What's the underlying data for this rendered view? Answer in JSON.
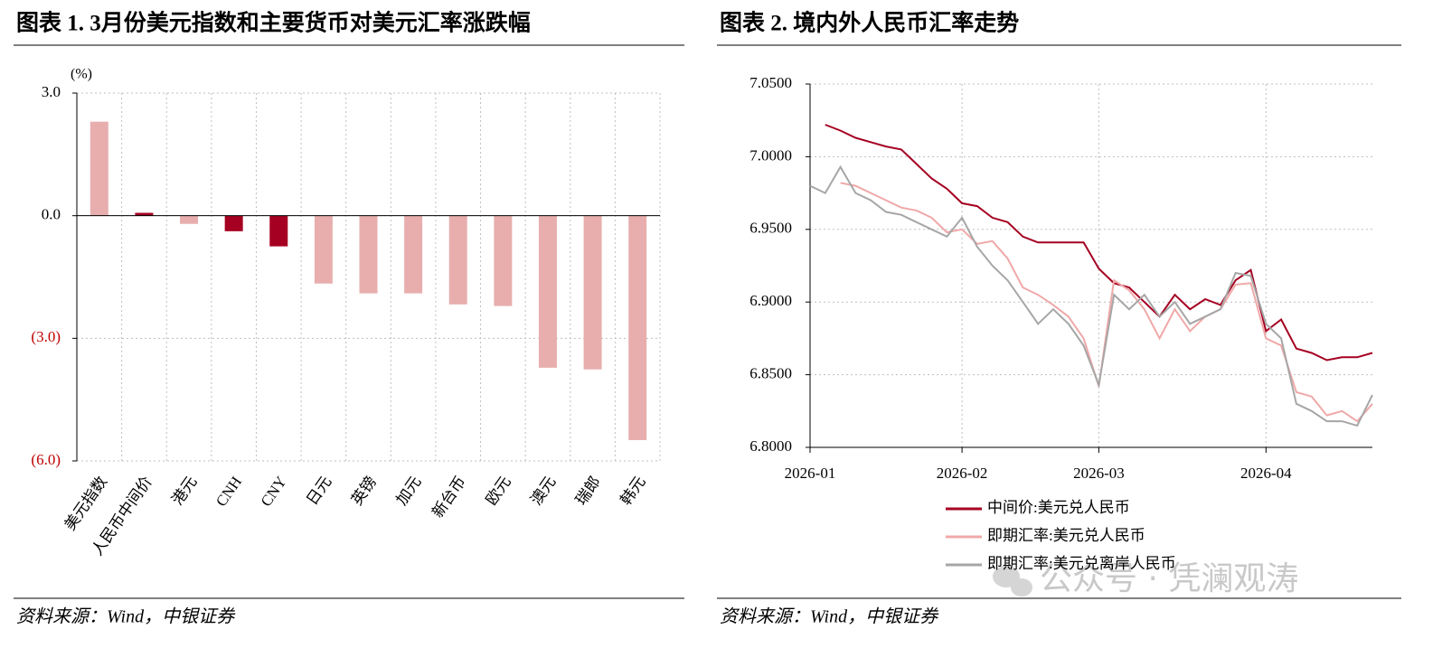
{
  "chart_data": [
    {
      "type": "bar",
      "title": "图表 1. 3月份美元指数和主要货币对美元汇率涨跌幅",
      "y_unit": "(%)",
      "source": "资料来源：Wind，中银证券",
      "categories": [
        "美元指数",
        "人民币中间价",
        "港元",
        "CNH",
        "CNY",
        "日元",
        "英镑",
        "加元",
        "新台币",
        "欧元",
        "澳元",
        "瑞郎",
        "韩元"
      ],
      "values": [
        2.3,
        0.07,
        -0.2,
        -0.38,
        -0.75,
        -1.66,
        -1.9,
        -1.9,
        -2.17,
        -2.21,
        -3.72,
        -3.76,
        -5.49
      ],
      "colors": [
        "#e8aeae",
        "#a50021",
        "#e8aeae",
        "#a50021",
        "#a50021",
        "#e8aeae",
        "#e8aeae",
        "#e8aeae",
        "#e8aeae",
        "#e8aeae",
        "#e8aeae",
        "#e8aeae",
        "#e8aeae"
      ],
      "ylim": [
        -6,
        3
      ],
      "yticks": [
        {
          "value": 3,
          "label": "3.0"
        },
        {
          "value": 0,
          "label": "0.0"
        },
        {
          "value": -3,
          "label": "(3.0)"
        },
        {
          "value": -6,
          "label": "(6.0)"
        }
      ],
      "negative_tick_color": "#c00000",
      "grid": true
    },
    {
      "type": "line",
      "title": "图表 2. 境内外人民币汇率走势",
      "source": "资料来源：Wind，中银证券",
      "legend": "bottom",
      "categories": [
        "2026-01",
        null,
        null,
        null,
        null,
        null,
        null,
        null,
        null,
        null,
        "2026-02",
        null,
        null,
        null,
        null,
        null,
        null,
        null,
        null,
        "2026-03",
        null,
        null,
        null,
        null,
        null,
        null,
        null,
        null,
        null,
        null,
        "2026-04",
        null,
        null,
        null,
        null,
        null,
        null,
        null
      ],
      "series": [
        {
          "name": "中间价:美元兑人民币",
          "color": "#a50021",
          "values": [
            null,
            7.022,
            7.018,
            7.013,
            7.01,
            7.007,
            7.005,
            6.995,
            6.985,
            6.978,
            6.968,
            6.966,
            6.958,
            6.955,
            6.945,
            6.941,
            6.941,
            6.941,
            6.941,
            6.923,
            6.913,
            6.91,
            6.9,
            6.89,
            6.905,
            6.895,
            6.902,
            6.898,
            6.915,
            6.922,
            6.88,
            6.888,
            6.868,
            6.865,
            6.86,
            6.862,
            6.862,
            6.865
          ]
        },
        {
          "name": "即期汇率:美元兑人民币",
          "color": "#f0a8a8",
          "values": [
            null,
            null,
            6.982,
            6.98,
            6.975,
            6.97,
            6.965,
            6.963,
            6.958,
            6.948,
            6.95,
            6.94,
            6.942,
            6.93,
            6.91,
            6.905,
            6.898,
            6.89,
            6.875,
            6.842,
            6.915,
            6.908,
            6.895,
            6.875,
            6.895,
            6.88,
            6.89,
            6.895,
            6.912,
            6.913,
            6.875,
            6.87,
            6.838,
            6.835,
            6.822,
            6.825,
            6.818,
            6.83
          ]
        },
        {
          "name": "即期汇率:美元兑离岸人民币",
          "color": "#a6a6a6",
          "values": [
            6.98,
            6.975,
            6.993,
            6.975,
            6.97,
            6.962,
            6.96,
            6.955,
            6.95,
            6.945,
            6.958,
            6.938,
            6.925,
            6.915,
            6.9,
            6.885,
            6.895,
            6.885,
            6.87,
            6.843,
            6.905,
            6.895,
            6.905,
            6.89,
            6.9,
            6.885,
            6.89,
            6.895,
            6.92,
            6.918,
            6.885,
            6.875,
            6.83,
            6.825,
            6.818,
            6.818,
            6.815,
            6.836
          ]
        }
      ],
      "ylim": [
        6.8,
        7.05
      ],
      "yticks": [
        {
          "value": 6.8,
          "label": "6.8000"
        },
        {
          "value": 6.85,
          "label": "6.8500"
        },
        {
          "value": 6.9,
          "label": "6.9000"
        },
        {
          "value": 6.95,
          "label": "6.9500"
        },
        {
          "value": 7.0,
          "label": "7.0000"
        },
        {
          "value": 7.05,
          "label": "7.0500"
        }
      ],
      "grid": true
    }
  ],
  "watermark": "公众号 · 凭澜观涛"
}
